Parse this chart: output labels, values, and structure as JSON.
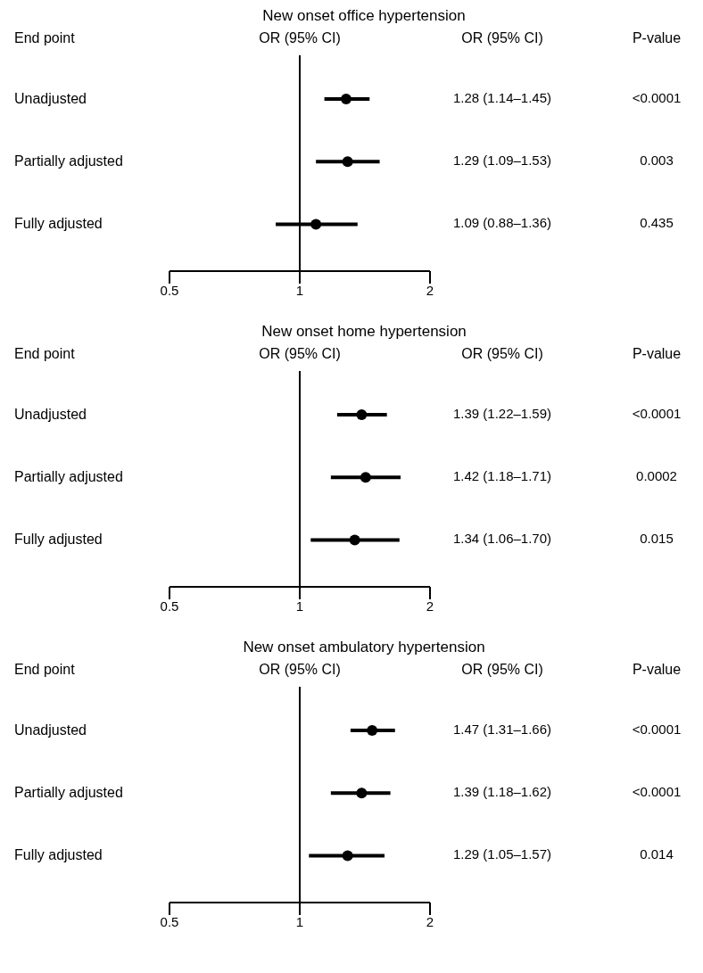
{
  "chart_data": [
    {
      "type": "scatter",
      "title": "New onset office hypertension",
      "orientation": "horizontal",
      "log": "x",
      "marker": "circle",
      "categories": [
        "Unadjusted",
        "Partially adjusted",
        "Fully adjusted"
      ],
      "series": [
        {
          "color": "#000000",
          "values": [
            1.28,
            1.29,
            1.09
          ],
          "errors": [
            [
              1.14,
              1.45
            ],
            [
              1.09,
              1.53
            ],
            [
              0.88,
              1.36
            ]
          ],
          "value_labels": [
            "1.28 (1.14–1.45)",
            "1.29 (1.09–1.53)",
            "1.09 (0.88–1.36)"
          ]
        }
      ],
      "xlim": [
        0.5,
        2
      ],
      "xticks": [
        0.5,
        1,
        2
      ],
      "ref_lines": [
        {
          "axis": "x",
          "value": 1
        }
      ],
      "annotations": [
        "End point",
        "OR (95% CI)",
        "OR (95% CI)",
        "P-value",
        "<0.0001",
        "0.003",
        "0.435"
      ]
    },
    {
      "type": "scatter",
      "title": "New onset home hypertension",
      "orientation": "horizontal",
      "log": "x",
      "marker": "circle",
      "categories": [
        "Unadjusted",
        "Partially adjusted",
        "Fully adjusted"
      ],
      "series": [
        {
          "color": "#000000",
          "values": [
            1.39,
            1.42,
            1.34
          ],
          "errors": [
            [
              1.22,
              1.59
            ],
            [
              1.18,
              1.71
            ],
            [
              1.06,
              1.7
            ]
          ],
          "value_labels": [
            "1.39 (1.22–1.59)",
            "1.42 (1.18–1.71)",
            "1.34 (1.06–1.70)"
          ]
        }
      ],
      "xlim": [
        0.5,
        2
      ],
      "xticks": [
        0.5,
        1,
        2
      ],
      "ref_lines": [
        {
          "axis": "x",
          "value": 1
        }
      ],
      "annotations": [
        "End point",
        "OR (95% CI)",
        "OR (95% CI)",
        "P-value",
        "<0.0001",
        "0.0002",
        "0.015"
      ]
    },
    {
      "type": "scatter",
      "title": "New onset ambulatory hypertension",
      "orientation": "horizontal",
      "log": "x",
      "marker": "circle",
      "categories": [
        "Unadjusted",
        "Partially adjusted",
        "Fully adjusted"
      ],
      "series": [
        {
          "color": "#000000",
          "values": [
            1.47,
            1.39,
            1.29
          ],
          "errors": [
            [
              1.31,
              1.66
            ],
            [
              1.18,
              1.62
            ],
            [
              1.05,
              1.57
            ]
          ],
          "value_labels": [
            "1.47 (1.31–1.66)",
            "1.39 (1.18–1.62)",
            "1.29 (1.05–1.57)"
          ]
        }
      ],
      "xlim": [
        0.5,
        2
      ],
      "xticks": [
        0.5,
        1,
        2
      ],
      "ref_lines": [
        {
          "axis": "x",
          "value": 1
        }
      ],
      "annotations": [
        "End point",
        "OR (95% CI)",
        "OR (95% CI)",
        "P-value",
        "<0.0001",
        "<0.0001",
        "0.014"
      ]
    }
  ]
}
